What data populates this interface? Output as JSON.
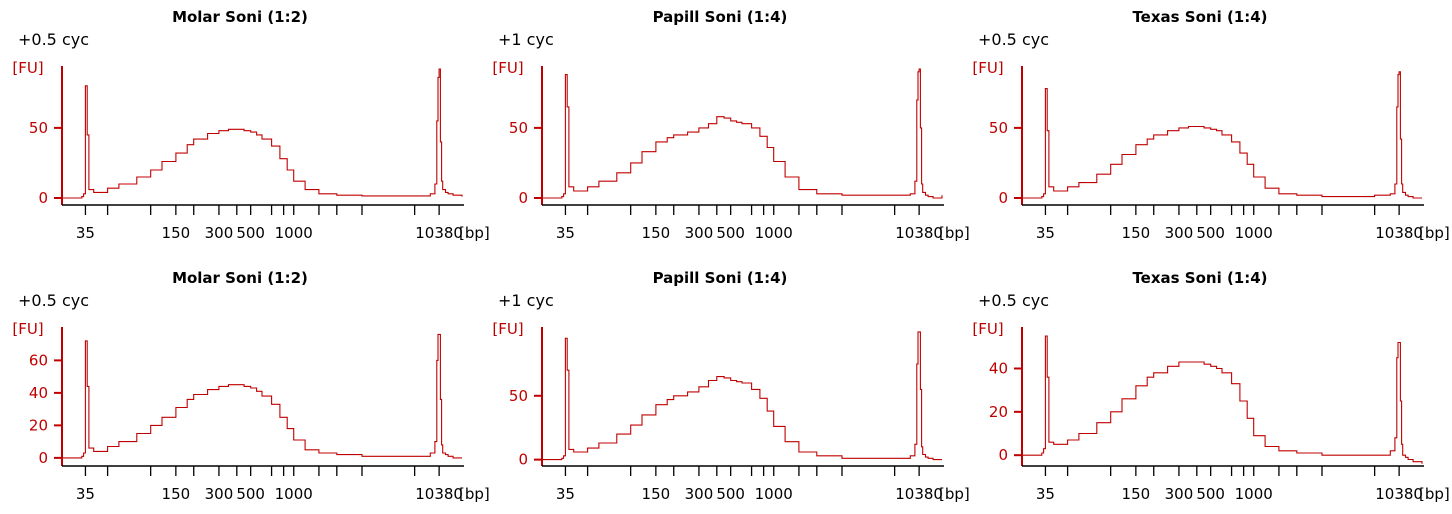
{
  "chart_data": [
    {
      "type": "line",
      "title": "Molar Soni (1:2)",
      "note": "+0.5 cyc",
      "ylabel": "[FU]",
      "xunit": "[bp]",
      "xtick_labels": [
        "35",
        "150",
        "300",
        "500",
        "1000",
        "10380"
      ],
      "xticks_minor": [
        35,
        50,
        100,
        150,
        200,
        300,
        400,
        500,
        700,
        850,
        1000,
        1500,
        2000,
        3000,
        7000,
        10380
      ],
      "yticks": [
        0,
        50
      ],
      "ylim": [
        -5,
        97
      ],
      "xlim": [
        24,
        15000
      ],
      "color": "#c00000",
      "x": [
        24,
        30,
        33,
        34,
        35,
        36,
        37,
        40,
        50,
        60,
        80,
        100,
        120,
        150,
        180,
        200,
        250,
        300,
        350,
        400,
        450,
        500,
        550,
        600,
        700,
        800,
        900,
        1000,
        1200,
        1500,
        2000,
        3000,
        5000,
        7000,
        9000,
        9700,
        10000,
        10200,
        10380,
        10600,
        10800,
        11000,
        11500,
        12000,
        13000,
        15000
      ],
      "y": [
        0,
        0,
        1,
        3,
        80,
        45,
        6,
        4,
        7,
        10,
        15,
        20,
        26,
        32,
        38,
        42,
        46,
        48,
        49,
        49,
        48,
        47,
        45,
        42,
        37,
        28,
        20,
        12,
        6,
        3,
        2,
        1.5,
        1.5,
        1.5,
        3,
        10,
        55,
        86,
        92,
        40,
        12,
        6,
        4,
        3,
        2,
        1
      ]
    },
    {
      "type": "line",
      "title": "Papill Soni (1:4)",
      "note": "+1 cyc",
      "ylabel": "[FU]",
      "xunit": "[bp]",
      "xtick_labels": [
        "35",
        "150",
        "300",
        "500",
        "1000",
        "10380"
      ],
      "xticks_minor": [
        35,
        50,
        100,
        150,
        200,
        300,
        400,
        500,
        700,
        850,
        1000,
        1500,
        2000,
        3000,
        7000,
        10380
      ],
      "yticks": [
        0,
        50
      ],
      "ylim": [
        -5,
        97
      ],
      "xlim": [
        24,
        15000
      ],
      "color": "#c00000",
      "x": [
        24,
        30,
        33,
        34,
        35,
        36,
        37,
        40,
        50,
        60,
        80,
        100,
        120,
        150,
        180,
        200,
        250,
        300,
        350,
        400,
        450,
        500,
        550,
        600,
        700,
        800,
        900,
        1000,
        1200,
        1500,
        2000,
        3000,
        5000,
        7000,
        9000,
        9700,
        10000,
        10200,
        10380,
        10600,
        10800,
        11000,
        11500,
        12000,
        13000,
        15000
      ],
      "y": [
        0,
        0,
        1,
        3,
        88,
        65,
        8,
        5,
        8,
        12,
        18,
        25,
        33,
        40,
        43,
        45,
        47,
        50,
        53,
        58,
        57,
        55,
        54,
        53,
        50,
        44,
        36,
        26,
        15,
        6,
        3,
        2,
        2,
        2,
        3,
        12,
        70,
        90,
        92,
        50,
        10,
        4,
        2,
        1,
        0,
        2
      ]
    },
    {
      "type": "line",
      "title": "Texas Soni (1:4)",
      "note": "+0.5 cyc",
      "ylabel": "[FU]",
      "xunit": "[bp]",
      "xtick_labels": [
        "35",
        "150",
        "300",
        "500",
        "1000",
        "10380"
      ],
      "xticks_minor": [
        35,
        50,
        100,
        150,
        200,
        300,
        400,
        500,
        700,
        850,
        1000,
        1500,
        2000,
        3000,
        7000,
        10380
      ],
      "yticks": [
        0,
        50
      ],
      "ylim": [
        -5,
        97
      ],
      "xlim": [
        24,
        15000
      ],
      "color": "#c00000",
      "x": [
        24,
        30,
        33,
        34,
        35,
        36,
        37,
        40,
        50,
        60,
        80,
        100,
        120,
        150,
        180,
        200,
        250,
        300,
        350,
        400,
        450,
        500,
        550,
        600,
        700,
        800,
        900,
        1000,
        1200,
        1500,
        2000,
        3000,
        5000,
        7000,
        9000,
        9700,
        10000,
        10200,
        10380,
        10600,
        10800,
        11000,
        11500,
        12000,
        13000,
        15000
      ],
      "y": [
        0,
        0,
        1,
        3,
        78,
        48,
        8,
        5,
        8,
        11,
        17,
        24,
        31,
        38,
        42,
        45,
        48,
        50,
        51,
        51,
        50,
        49,
        48,
        45,
        40,
        32,
        24,
        15,
        7,
        3,
        2,
        1,
        1,
        2,
        3,
        10,
        65,
        88,
        90,
        42,
        10,
        4,
        2,
        1,
        0,
        0
      ]
    },
    {
      "type": "line",
      "title": "Molar Soni (1:2)",
      "note": "+0.5 cyc",
      "ylabel": "[FU]",
      "xunit": "[bp]",
      "xtick_labels": [
        "35",
        "150",
        "300",
        "500",
        "1000",
        "10380"
      ],
      "xticks_minor": [
        35,
        50,
        100,
        150,
        200,
        300,
        400,
        500,
        700,
        850,
        1000,
        1500,
        2000,
        3000,
        7000,
        10380
      ],
      "yticks": [
        0,
        20,
        40,
        60
      ],
      "ylim": [
        -5,
        83
      ],
      "xlim": [
        24,
        15000
      ],
      "color": "#c00000",
      "x": [
        24,
        30,
        33,
        34,
        35,
        36,
        37,
        40,
        50,
        60,
        80,
        100,
        120,
        150,
        180,
        200,
        250,
        300,
        350,
        400,
        450,
        500,
        550,
        600,
        700,
        800,
        900,
        1000,
        1200,
        1500,
        2000,
        3000,
        5000,
        7000,
        9000,
        9700,
        10000,
        10200,
        10380,
        10600,
        10800,
        11000,
        11500,
        12000,
        13000,
        15000
      ],
      "y": [
        0,
        0,
        1,
        3,
        72,
        44,
        6,
        4,
        7,
        10,
        15,
        20,
        25,
        31,
        36,
        39,
        42,
        44,
        45,
        45,
        44,
        43,
        41,
        38,
        33,
        25,
        18,
        11,
        5,
        3,
        2,
        1,
        1,
        1,
        3,
        10,
        60,
        76,
        76,
        36,
        8,
        3,
        2,
        1,
        0,
        0
      ]
    },
    {
      "type": "line",
      "title": "Papill Soni (1:4)",
      "note": "+1 cyc",
      "ylabel": "[FU]",
      "xunit": "[bp]",
      "xtick_labels": [
        "35",
        "150",
        "300",
        "500",
        "1000",
        "10380"
      ],
      "xticks_minor": [
        35,
        50,
        100,
        150,
        200,
        300,
        400,
        500,
        700,
        850,
        1000,
        1500,
        2000,
        3000,
        7000,
        10380
      ],
      "yticks": [
        0,
        50
      ],
      "ylim": [
        -5,
        107
      ],
      "xlim": [
        24,
        15000
      ],
      "color": "#c00000",
      "x": [
        24,
        30,
        33,
        34,
        35,
        36,
        37,
        40,
        50,
        60,
        80,
        100,
        120,
        150,
        180,
        200,
        250,
        300,
        350,
        400,
        450,
        500,
        550,
        600,
        700,
        800,
        900,
        1000,
        1200,
        1500,
        2000,
        3000,
        5000,
        7000,
        9000,
        9700,
        10000,
        10200,
        10380,
        10600,
        10800,
        11000,
        11500,
        12000,
        13000,
        15000
      ],
      "y": [
        0,
        0,
        1,
        3,
        95,
        70,
        8,
        6,
        9,
        13,
        20,
        27,
        35,
        43,
        47,
        50,
        53,
        57,
        62,
        65,
        64,
        62,
        61,
        60,
        55,
        48,
        38,
        26,
        14,
        6,
        3,
        1,
        1,
        1,
        3,
        12,
        75,
        100,
        100,
        55,
        10,
        4,
        2,
        1,
        0,
        0
      ]
    },
    {
      "type": "line",
      "title": "Texas Soni (1:4)",
      "note": "+0.5 cyc",
      "ylabel": "[FU]",
      "xunit": "[bp]",
      "xtick_labels": [
        "35",
        "150",
        "300",
        "500",
        "1000",
        "10380"
      ],
      "xticks_minor": [
        35,
        50,
        100,
        150,
        200,
        300,
        400,
        500,
        700,
        850,
        1000,
        1500,
        2000,
        3000,
        7000,
        10380
      ],
      "yticks": [
        0,
        20,
        40
      ],
      "ylim": [
        -5,
        61
      ],
      "xlim": [
        24,
        15000
      ],
      "color": "#c00000",
      "x": [
        24,
        30,
        33,
        34,
        35,
        36,
        37,
        40,
        50,
        60,
        80,
        100,
        120,
        150,
        180,
        200,
        250,
        300,
        350,
        400,
        450,
        500,
        550,
        600,
        700,
        800,
        900,
        1000,
        1200,
        1500,
        2000,
        3000,
        5000,
        7000,
        9000,
        9700,
        10000,
        10200,
        10380,
        10600,
        10800,
        11000,
        11500,
        12000,
        13000,
        15000
      ],
      "y": [
        0,
        0,
        1,
        3,
        55,
        36,
        6,
        5,
        7,
        10,
        15,
        20,
        26,
        32,
        36,
        38,
        41,
        43,
        43,
        43,
        42,
        41,
        40,
        38,
        33,
        25,
        17,
        9,
        4,
        2,
        1,
        0,
        0,
        0,
        2,
        8,
        45,
        52,
        52,
        25,
        5,
        0,
        -1,
        -2,
        -3,
        -4
      ]
    }
  ]
}
